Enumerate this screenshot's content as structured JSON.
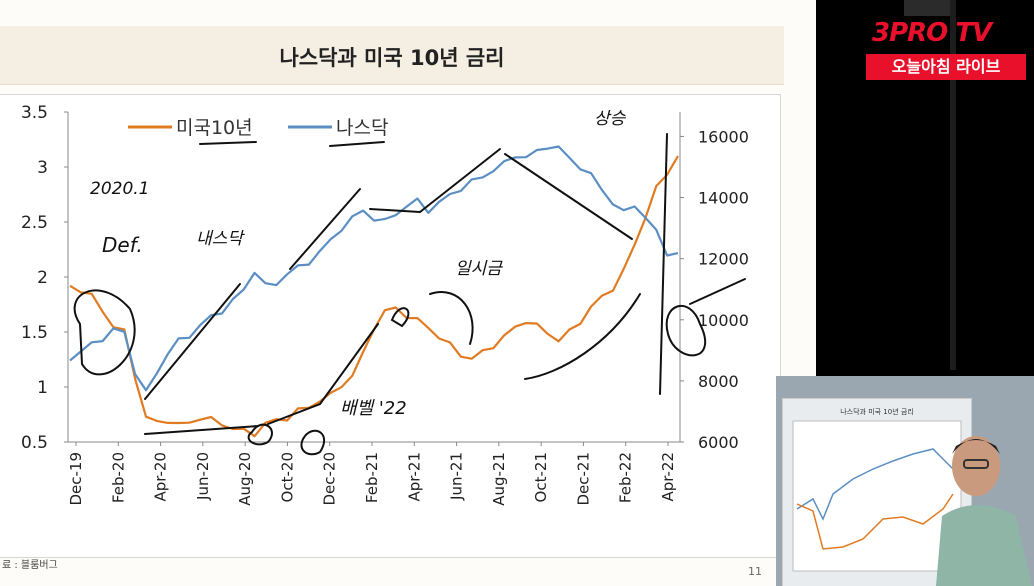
{
  "slide": {
    "title": "나스닥과 미국 10년 금리",
    "source": "료 : 블룸버그",
    "page_number": "11"
  },
  "branding": {
    "logo_top": "3PRO TV",
    "logo_bottom": "오늘아침 라이브",
    "accent_color": "#e8102a"
  },
  "pip": {
    "title": "나스닥과 미국 10년 금리"
  },
  "chart_data": {
    "type": "line",
    "x_ticks": [
      "Dec-19",
      "Feb-20",
      "Apr-20",
      "Jun-20",
      "Aug-20",
      "Oct-20",
      "Dec-20",
      "Feb-21",
      "Apr-21",
      "Jun-21",
      "Aug-21",
      "Oct-21",
      "Dec-21",
      "Feb-22",
      "Apr-22"
    ],
    "y_left": {
      "ticks": [
        "0.5",
        "1",
        "1.5",
        "2",
        "2.5",
        "3",
        "3.5"
      ],
      "ylim": [
        0.5,
        3.5
      ]
    },
    "y_right": {
      "ticks": [
        "6000",
        "8000",
        "10000",
        "12000",
        "14000",
        "16000"
      ],
      "ylim": [
        6000,
        16800
      ]
    },
    "series": [
      {
        "name": "미국10년",
        "color": "#e07b22",
        "axis": "left",
        "values": [
          1.92,
          1.88,
          1.82,
          1.7,
          1.55,
          1.5,
          1.1,
          0.72,
          0.68,
          0.7,
          0.65,
          0.68,
          0.72,
          0.7,
          0.67,
          0.62,
          0.6,
          0.58,
          0.66,
          0.7,
          0.72,
          0.78,
          0.82,
          0.88,
          0.92,
          1.02,
          1.1,
          1.3,
          1.55,
          1.68,
          1.72,
          1.65,
          1.6,
          1.55,
          1.45,
          1.38,
          1.3,
          1.25,
          1.32,
          1.38,
          1.45,
          1.55,
          1.6,
          1.55,
          1.5,
          1.42,
          1.5,
          1.6,
          1.72,
          1.82,
          1.9,
          2.05,
          2.3,
          2.55,
          2.8,
          2.95,
          3.1
        ]
      },
      {
        "name": "나스닥",
        "color": "#5b8fc4",
        "axis": "right",
        "values": [
          8750,
          8950,
          9200,
          9400,
          9650,
          9600,
          8300,
          7600,
          8300,
          8900,
          9300,
          9500,
          9800,
          10100,
          10300,
          10600,
          11000,
          11600,
          11100,
          11200,
          11500,
          11700,
          11900,
          12200,
          12600,
          13000,
          13300,
          13600,
          13300,
          13200,
          13500,
          13700,
          13900,
          13600,
          13800,
          14100,
          14300,
          14500,
          14700,
          14900,
          15100,
          15400,
          15300,
          15500,
          15700,
          15600,
          15300,
          15000,
          14700,
          14300,
          13800,
          13500,
          13800,
          13300,
          12900,
          12200,
          12100
        ]
      }
    ],
    "annotations": [
      "2020.1",
      "Def.",
      "내스닥",
      "배벨 '22",
      "일시금",
      "상승"
    ]
  }
}
